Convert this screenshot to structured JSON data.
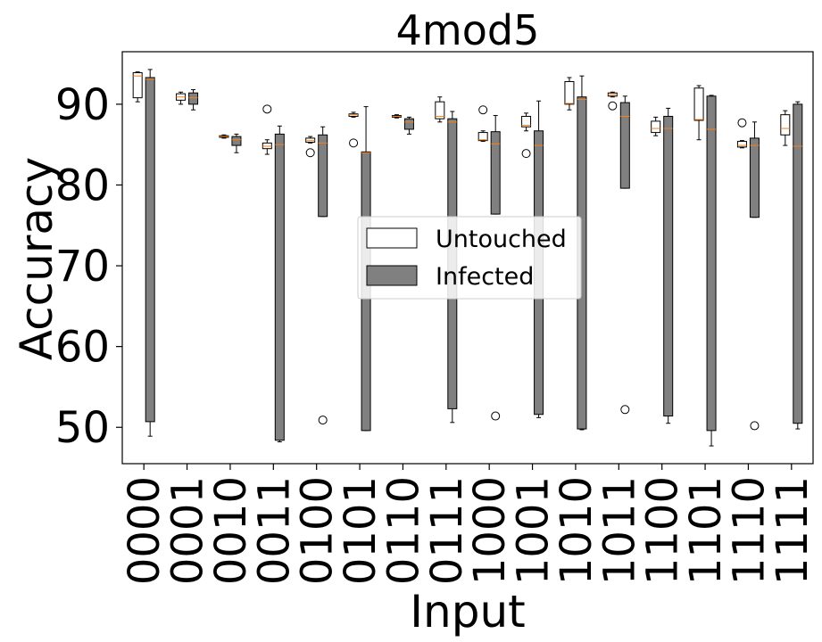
{
  "chart_data": {
    "type": "box",
    "title": "4mod5",
    "xlabel": "Input",
    "ylabel": "Accuracy",
    "ylim": [
      45.5,
      96.5
    ],
    "yticks": [
      50,
      60,
      70,
      80,
      90
    ],
    "grid": false,
    "legend_position": "center",
    "categories": [
      "0000",
      "0001",
      "0010",
      "0011",
      "0100",
      "0101",
      "0110",
      "0111",
      "1000",
      "1001",
      "1010",
      "1011",
      "1100",
      "1101",
      "1110",
      "1111"
    ],
    "series": [
      {
        "name": "Untouched",
        "color": "#ffffff",
        "boxes": [
          {
            "whislo": 90.3,
            "q1": 90.8,
            "med": 93.5,
            "q3": 93.9,
            "whishi": 94.0,
            "fliers": []
          },
          {
            "whislo": 90.0,
            "q1": 90.5,
            "med": 90.9,
            "q3": 91.3,
            "whishi": 91.5,
            "fliers": []
          },
          {
            "whislo": 85.8,
            "q1": 85.9,
            "med": 86.0,
            "q3": 86.1,
            "whishi": 86.2,
            "fliers": []
          },
          {
            "whislo": 83.8,
            "q1": 84.5,
            "med": 84.8,
            "q3": 85.2,
            "whishi": 85.6,
            "fliers": [
              89.4
            ]
          },
          {
            "whislo": 85.2,
            "q1": 85.3,
            "med": 85.5,
            "q3": 85.8,
            "whishi": 86.0,
            "fliers": [
              84.0
            ]
          },
          {
            "whislo": 88.4,
            "q1": 88.5,
            "med": 88.7,
            "q3": 88.8,
            "whishi": 89.0,
            "fliers": [
              85.2
            ]
          },
          {
            "whislo": 88.3,
            "q1": 88.4,
            "med": 88.5,
            "q3": 88.6,
            "whishi": 88.7,
            "fliers": []
          },
          {
            "whislo": 87.8,
            "q1": 88.2,
            "med": 88.5,
            "q3": 90.3,
            "whishi": 90.9,
            "fliers": []
          },
          {
            "whislo": 85.4,
            "q1": 85.5,
            "med": 85.6,
            "q3": 86.5,
            "whishi": 86.7,
            "fliers": [
              89.3
            ]
          },
          {
            "whislo": 86.7,
            "q1": 87.2,
            "med": 87.4,
            "q3": 88.5,
            "whishi": 88.9,
            "fliers": [
              83.9
            ]
          },
          {
            "whislo": 89.3,
            "q1": 90.0,
            "med": 90.1,
            "q3": 92.8,
            "whishi": 93.3,
            "fliers": []
          },
          {
            "whislo": 90.9,
            "q1": 91.0,
            "med": 91.2,
            "q3": 91.4,
            "whishi": 91.5,
            "fliers": [
              89.8
            ]
          },
          {
            "whislo": 86.1,
            "q1": 86.5,
            "med": 87.0,
            "q3": 87.9,
            "whishi": 88.4,
            "fliers": []
          },
          {
            "whislo": 85.6,
            "q1": 88.0,
            "med": 88.1,
            "q3": 92.0,
            "whishi": 92.3,
            "fliers": []
          },
          {
            "whislo": 84.6,
            "q1": 84.7,
            "med": 84.9,
            "q3": 85.4,
            "whishi": 85.5,
            "fliers": [
              87.7
            ]
          },
          {
            "whislo": 84.9,
            "q1": 86.2,
            "med": 87.0,
            "q3": 88.7,
            "whishi": 89.2,
            "fliers": []
          }
        ]
      },
      {
        "name": "Infected",
        "color": "#808080",
        "boxes": [
          {
            "whislo": 48.9,
            "q1": 50.7,
            "med": 93.1,
            "q3": 93.3,
            "whishi": 94.3,
            "fliers": []
          },
          {
            "whislo": 89.3,
            "q1": 90.0,
            "med": 90.8,
            "q3": 91.4,
            "whishi": 91.8,
            "fliers": []
          },
          {
            "whislo": 84.0,
            "q1": 84.9,
            "med": 85.6,
            "q3": 86.0,
            "whishi": 86.3,
            "fliers": []
          },
          {
            "whislo": 48.2,
            "q1": 48.4,
            "med": 85.0,
            "q3": 86.3,
            "whishi": 87.3,
            "fliers": []
          },
          {
            "whislo": 76.1,
            "q1": 76.1,
            "med": 85.2,
            "q3": 86.2,
            "whishi": 87.2,
            "fliers": [
              50.9
            ]
          },
          {
            "whislo": 49.6,
            "q1": 49.6,
            "med": 84.0,
            "q3": 84.1,
            "whishi": 89.7,
            "fliers": []
          },
          {
            "whislo": 86.3,
            "q1": 86.9,
            "med": 87.8,
            "q3": 88.2,
            "whishi": 88.4,
            "fliers": []
          },
          {
            "whislo": 50.6,
            "q1": 52.3,
            "med": 87.8,
            "q3": 88.2,
            "whishi": 89.1,
            "fliers": []
          },
          {
            "whislo": 76.4,
            "q1": 76.4,
            "med": 85.1,
            "q3": 86.6,
            "whishi": 88.6,
            "fliers": [
              51.4
            ]
          },
          {
            "whislo": 51.2,
            "q1": 51.6,
            "med": 84.9,
            "q3": 86.7,
            "whishi": 90.4,
            "fliers": []
          },
          {
            "whislo": 49.7,
            "q1": 49.8,
            "med": 90.6,
            "q3": 90.9,
            "whishi": 93.5,
            "fliers": []
          },
          {
            "whislo": 79.6,
            "q1": 79.6,
            "med": 88.5,
            "q3": 90.2,
            "whishi": 91.0,
            "fliers": [
              52.2
            ]
          },
          {
            "whislo": 50.5,
            "q1": 51.4,
            "med": 87.0,
            "q3": 88.5,
            "whishi": 89.5,
            "fliers": []
          },
          {
            "whislo": 47.7,
            "q1": 49.6,
            "med": 86.9,
            "q3": 91.0,
            "whishi": 91.1,
            "fliers": []
          },
          {
            "whislo": 76.0,
            "q1": 76.0,
            "med": 84.9,
            "q3": 85.8,
            "whishi": 87.8,
            "fliers": [
              50.2
            ]
          },
          {
            "whislo": 49.8,
            "q1": 50.5,
            "med": 84.8,
            "q3": 90.0,
            "whishi": 90.3,
            "fliers": []
          }
        ]
      }
    ]
  }
}
